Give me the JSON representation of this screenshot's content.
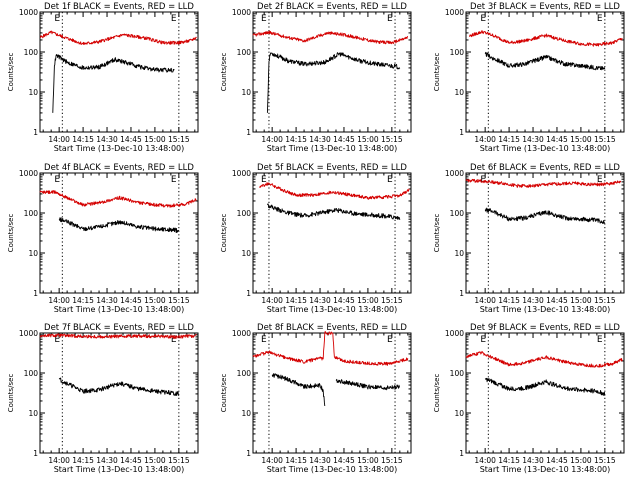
{
  "chart_data": [
    {
      "type": "line",
      "title": "Det 1f BLACK = Events, RED = LLD",
      "xlabel": "Start Time (13-Dec-10 13:48:00)",
      "ylabel": "Counts/sec",
      "yscale": "log",
      "ylim": [
        1,
        1000
      ],
      "xlim": [
        "13:48",
        "15:27"
      ],
      "x_ticks": [
        "14:00",
        "14:15",
        "14:30",
        "14:45",
        "15:00",
        "15:15"
      ],
      "y_ticks": [
        "1",
        "10",
        "100",
        "1000"
      ],
      "marker_lines": [
        {
          "time": "14:02",
          "label": "E"
        },
        {
          "time": "15:15",
          "label": "E"
        }
      ],
      "series": [
        {
          "color": "#d40000",
          "x": [
            "13:48",
            "13:55",
            "14:05",
            "14:15",
            "14:25",
            "14:40",
            "14:55",
            "15:05",
            "15:15",
            "15:22",
            "15:26"
          ],
          "values": [
            230,
            310,
            220,
            160,
            180,
            270,
            220,
            170,
            170,
            190,
            230
          ]
        },
        {
          "color": "#000000",
          "x": [
            "13:56",
            "13:57",
            "13:58",
            "14:00",
            "14:05",
            "14:15",
            "14:25",
            "14:35",
            "14:45",
            "14:55",
            "15:05",
            "15:12"
          ],
          "values": [
            3,
            45,
            80,
            75,
            55,
            40,
            42,
            65,
            50,
            38,
            35,
            36
          ]
        }
      ]
    },
    {
      "type": "line",
      "title": "Det 2f BLACK = Events, RED = LLD",
      "xlabel": "Start Time (13-Dec-10 13:48:00)",
      "ylabel": "Counts/sec",
      "yscale": "log",
      "ylim": [
        1,
        1000
      ],
      "xlim": [
        "13:48",
        "15:27"
      ],
      "x_ticks": [
        "14:00",
        "14:15",
        "14:30",
        "14:45",
        "15:00",
        "15:15"
      ],
      "y_ticks": [
        "1",
        "10",
        "100",
        "1000"
      ],
      "marker_lines": [
        {
          "time": "13:58",
          "label": "E"
        },
        {
          "time": "15:17",
          "label": "E"
        }
      ],
      "series": [
        {
          "color": "#d40000",
          "x": [
            "13:48",
            "13:58",
            "14:10",
            "14:20",
            "14:35",
            "14:45",
            "14:55",
            "15:05",
            "15:15",
            "15:25"
          ],
          "values": [
            260,
            310,
            230,
            190,
            300,
            270,
            220,
            180,
            170,
            230
          ]
        },
        {
          "color": "#000000",
          "x": [
            "13:57",
            "13:58",
            "13:59",
            "14:02",
            "14:10",
            "14:20",
            "14:33",
            "14:42",
            "14:55",
            "15:05",
            "15:15",
            "15:20"
          ],
          "values": [
            3,
            60,
            95,
            85,
            60,
            50,
            55,
            90,
            60,
            50,
            45,
            42
          ]
        }
      ]
    },
    {
      "type": "line",
      "title": "Det 3f BLACK = Events, RED = LLD",
      "xlabel": "Start Time (13-Dec-10 13:48:00)",
      "ylabel": "Counts/sec",
      "yscale": "log",
      "ylim": [
        1,
        1000
      ],
      "xlim": [
        "13:48",
        "15:27"
      ],
      "x_ticks": [
        "14:00",
        "14:15",
        "14:30",
        "14:45",
        "15:00",
        "15:15"
      ],
      "y_ticks": [
        "1",
        "10",
        "100",
        "1000"
      ],
      "marker_lines": [
        {
          "time": "14:02",
          "label": "E"
        },
        {
          "time": "15:15",
          "label": "E"
        }
      ],
      "series": [
        {
          "color": "#d40000",
          "x": [
            "13:50",
            "13:58",
            "14:05",
            "14:15",
            "14:25",
            "14:38",
            "14:50",
            "15:00",
            "15:10",
            "15:20",
            "15:26"
          ],
          "values": [
            250,
            320,
            260,
            170,
            190,
            260,
            190,
            160,
            150,
            170,
            220
          ]
        },
        {
          "color": "#000000",
          "x": [
            "14:00",
            "14:05",
            "14:15",
            "14:25",
            "14:38",
            "14:50",
            "15:00",
            "15:10",
            "15:15"
          ],
          "values": [
            90,
            70,
            45,
            50,
            75,
            50,
            45,
            40,
            38
          ]
        }
      ]
    },
    {
      "type": "line",
      "title": "Det 4f BLACK = Events, RED = LLD",
      "xlabel": "Start Time (13-Dec-10 13:48:00)",
      "ylabel": "Counts/sec",
      "yscale": "log",
      "ylim": [
        1,
        1000
      ],
      "xlim": [
        "13:48",
        "15:27"
      ],
      "x_ticks": [
        "14:00",
        "14:15",
        "14:30",
        "14:45",
        "15:00",
        "15:15"
      ],
      "y_ticks": [
        "1",
        "10",
        "100",
        "1000"
      ],
      "marker_lines": [
        {
          "time": "14:02",
          "label": "E"
        },
        {
          "time": "15:15",
          "label": "E"
        }
      ],
      "series": [
        {
          "color": "#d40000",
          "x": [
            "13:48",
            "13:58",
            "14:05",
            "14:15",
            "14:25",
            "14:38",
            "14:50",
            "15:00",
            "15:10",
            "15:20",
            "15:26"
          ],
          "values": [
            330,
            330,
            240,
            160,
            180,
            240,
            180,
            160,
            150,
            170,
            220
          ]
        },
        {
          "color": "#000000",
          "x": [
            "14:00",
            "14:05",
            "14:15",
            "14:25",
            "14:38",
            "14:50",
            "15:00",
            "15:10",
            "15:15"
          ],
          "values": [
            70,
            60,
            40,
            45,
            60,
            45,
            40,
            38,
            36
          ]
        }
      ]
    },
    {
      "type": "line",
      "title": "Det 5f BLACK = Events, RED = LLD",
      "xlabel": "Start Time (13-Dec-10 13:48:00)",
      "ylabel": "Counts/sec",
      "yscale": "log",
      "ylim": [
        1,
        1000
      ],
      "xlim": [
        "13:48",
        "15:27"
      ],
      "x_ticks": [
        "14:00",
        "14:15",
        "14:30",
        "14:45",
        "15:00",
        "15:15"
      ],
      "y_ticks": [
        "1",
        "10",
        "100",
        "1000"
      ],
      "marker_lines": [
        {
          "time": "13:58",
          "label": "E"
        },
        {
          "time": "15:17",
          "label": "E"
        }
      ],
      "series": [
        {
          "color": "#d40000",
          "x": [
            "13:52",
            "13:58",
            "14:05",
            "14:15",
            "14:25",
            "14:38",
            "14:50",
            "15:00",
            "15:10",
            "15:20",
            "15:26"
          ],
          "values": [
            450,
            550,
            400,
            280,
            280,
            330,
            280,
            240,
            250,
            270,
            380
          ]
        },
        {
          "color": "#000000",
          "x": [
            "13:57",
            "14:02",
            "14:10",
            "14:20",
            "14:30",
            "14:40",
            "14:50",
            "15:00",
            "15:10",
            "15:20"
          ],
          "values": [
            160,
            130,
            100,
            85,
            100,
            120,
            100,
            90,
            85,
            75
          ]
        }
      ]
    },
    {
      "type": "line",
      "title": "Det 6f BLACK = Events, RED = LLD",
      "xlabel": "Start Time (13-Dec-10 13:48:00)",
      "ylabel": "Counts/sec",
      "yscale": "log",
      "ylim": [
        1,
        1000
      ],
      "xlim": [
        "13:48",
        "15:27"
      ],
      "x_ticks": [
        "14:00",
        "14:15",
        "14:30",
        "14:45",
        "15:00",
        "15:15"
      ],
      "y_ticks": [
        "1",
        "10",
        "100",
        "1000"
      ],
      "marker_lines": [
        {
          "time": "14:02",
          "label": "E"
        },
        {
          "time": "15:15",
          "label": "E"
        }
      ],
      "series": [
        {
          "color": "#d40000",
          "x": [
            "13:48",
            "14:00",
            "14:10",
            "14:20",
            "14:30",
            "14:40",
            "14:55",
            "15:05",
            "15:15",
            "15:25"
          ],
          "values": [
            650,
            620,
            560,
            480,
            480,
            520,
            560,
            520,
            520,
            600
          ]
        },
        {
          "color": "#000000",
          "x": [
            "14:00",
            "14:05",
            "14:15",
            "14:25",
            "14:38",
            "14:50",
            "15:00",
            "15:10",
            "15:15"
          ],
          "values": [
            120,
            110,
            70,
            75,
            105,
            75,
            70,
            65,
            60
          ]
        }
      ]
    },
    {
      "type": "line",
      "title": "Det 7f BLACK = Events, RED = LLD",
      "xlabel": "Start Time (13-Dec-10 13:48:00)",
      "ylabel": "Counts/sec",
      "yscale": "log",
      "ylim": [
        1,
        1000
      ],
      "xlim": [
        "13:48",
        "15:27"
      ],
      "x_ticks": [
        "14:00",
        "14:15",
        "14:30",
        "14:45",
        "15:00",
        "15:15"
      ],
      "y_ticks": [
        "1",
        "10",
        "100",
        "1000"
      ],
      "marker_lines": [
        {
          "time": "14:02",
          "label": "E"
        },
        {
          "time": "15:15",
          "label": "E"
        }
      ],
      "series": [
        {
          "color": "#d40000",
          "x": [
            "13:48",
            "14:00",
            "14:15",
            "14:30",
            "14:45",
            "15:00",
            "15:15",
            "15:26"
          ],
          "values": [
            850,
            870,
            820,
            800,
            850,
            830,
            800,
            850
          ]
        },
        {
          "color": "#000000",
          "x": [
            "14:00",
            "14:05",
            "14:15",
            "14:25",
            "14:38",
            "14:50",
            "15:00",
            "15:10",
            "15:15"
          ],
          "values": [
            70,
            55,
            35,
            38,
            55,
            40,
            35,
            32,
            30
          ]
        }
      ]
    },
    {
      "type": "line",
      "title": "Det 8f BLACK = Events, RED = LLD",
      "xlabel": "Start Time (13-Dec-10 13:48:00)",
      "ylabel": "Counts/sec",
      "yscale": "log",
      "ylim": [
        1,
        1000
      ],
      "xlim": [
        "13:48",
        "15:27"
      ],
      "x_ticks": [
        "14:00",
        "14:15",
        "14:30",
        "14:45",
        "15:00",
        "15:15"
      ],
      "y_ticks": [
        "1",
        "10",
        "100",
        "1000"
      ],
      "marker_lines": [
        {
          "time": "13:58",
          "label": "E"
        },
        {
          "time": "15:17",
          "label": "E"
        }
      ],
      "series": [
        {
          "color": "#d40000",
          "x": [
            "13:48",
            "13:58",
            "14:10",
            "14:20",
            "14:30",
            "14:32",
            "14:33",
            "14:38",
            "14:39",
            "14:45",
            "14:55",
            "15:05",
            "15:15",
            "15:25"
          ],
          "values": [
            260,
            330,
            230,
            190,
            230,
            230,
            1000,
            1000,
            250,
            200,
            180,
            170,
            170,
            230
          ]
        },
        {
          "color": "#000000",
          "x": [
            "14:00",
            "14:10",
            "14:20",
            "14:30",
            "14:32",
            "14:33"
          ],
          "values": [
            90,
            70,
            45,
            50,
            35,
            15
          ]
        },
        {
          "color": "#000000",
          "x": [
            "14:40",
            "14:50",
            "15:00",
            "15:10",
            "15:20"
          ],
          "values": [
            65,
            55,
            45,
            42,
            45
          ]
        }
      ]
    },
    {
      "type": "line",
      "title": "Det 9f BLACK = Events, RED = LLD",
      "xlabel": "Start Time (13-Dec-10 13:48:00)",
      "ylabel": "Counts/sec",
      "yscale": "log",
      "ylim": [
        1,
        1000
      ],
      "xlim": [
        "13:48",
        "15:27"
      ],
      "x_ticks": [
        "14:00",
        "14:15",
        "14:30",
        "14:45",
        "15:00",
        "15:15"
      ],
      "y_ticks": [
        "1",
        "10",
        "100",
        "1000"
      ],
      "marker_lines": [
        {
          "time": "14:02",
          "label": "E"
        },
        {
          "time": "15:15",
          "label": "E"
        }
      ],
      "series": [
        {
          "color": "#d40000",
          "x": [
            "13:48",
            "13:58",
            "14:05",
            "14:15",
            "14:25",
            "14:38",
            "14:50",
            "15:00",
            "15:10",
            "15:20",
            "15:26"
          ],
          "values": [
            260,
            320,
            240,
            160,
            180,
            250,
            190,
            160,
            150,
            170,
            220
          ]
        },
        {
          "color": "#000000",
          "x": [
            "14:00",
            "14:05",
            "14:15",
            "14:25",
            "14:38",
            "14:50",
            "15:00",
            "15:10",
            "15:15"
          ],
          "values": [
            70,
            60,
            40,
            42,
            60,
            42,
            38,
            35,
            30
          ]
        }
      ]
    }
  ]
}
